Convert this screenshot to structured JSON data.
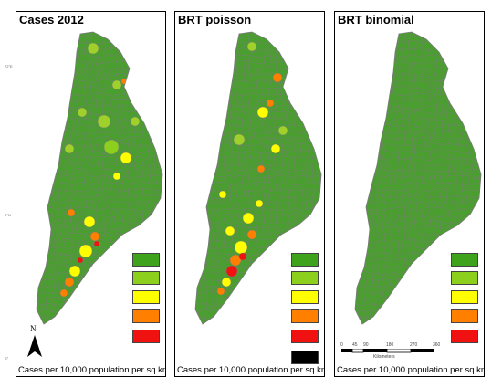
{
  "panels": [
    {
      "title": "Cases 2012",
      "caption": "Cases per 10,000 population per sq km"
    },
    {
      "title": "BRT poisson",
      "caption": "Cases per 10,000 population per sq km"
    },
    {
      "title": "BRT binomial",
      "caption": "Cases per 10,000 population per sq km"
    }
  ],
  "legend_colors": [
    "#3ea21b",
    "#8ccf1c",
    "#ffff00",
    "#ff7f00",
    "#f01111"
  ],
  "extra_legend_color": "#000000",
  "map_colors": {
    "base": "#4a9e2f",
    "dark": "#3b8a26",
    "light": "#9fd12a",
    "boundary": "#7a7a7a"
  },
  "north_label": "N",
  "scale": {
    "ticks": [
      "0",
      "45",
      "90",
      "180",
      "270",
      "360"
    ],
    "unit": "Kilometers"
  },
  "coord_labels": {
    "top": "72°E",
    "mid": "0°N",
    "bottom": "S°"
  }
}
